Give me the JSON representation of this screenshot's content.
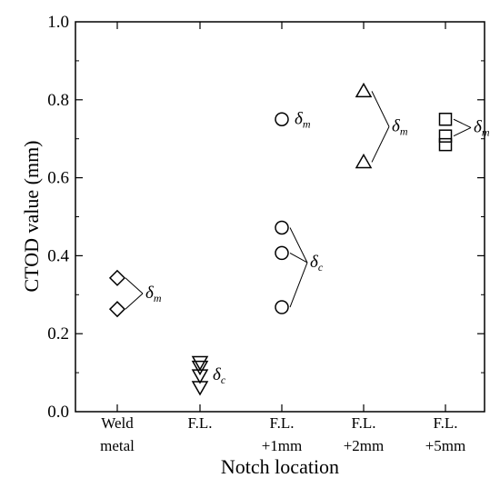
{
  "chart_data": {
    "type": "scatter",
    "title": "",
    "xlabel": "Notch location",
    "ylabel": "CTOD value (mm)",
    "ylim": [
      0,
      1.0
    ],
    "y_ticks": [
      "0.0",
      "0.2",
      "0.4",
      "0.6",
      "0.8",
      "1.0"
    ],
    "categories": [
      [
        "Weld",
        "metal"
      ],
      [
        "F.L."
      ],
      [
        "F.L.",
        "+1mm"
      ],
      [
        "F.L.",
        "+2mm"
      ],
      [
        "F.L.",
        "+5mm"
      ]
    ],
    "grid": false,
    "points": [
      {
        "category_index": 0,
        "marker": "diamond",
        "values": [
          0.343,
          0.263
        ]
      },
      {
        "category_index": 1,
        "marker": "triangle-down",
        "values": [
          0.127,
          0.115,
          0.093,
          0.063
        ]
      },
      {
        "category_index": 2,
        "marker": "circle",
        "values": [
          0.75,
          0.472,
          0.407,
          0.268
        ]
      },
      {
        "category_index": 3,
        "marker": "triangle-up",
        "values": [
          0.822,
          0.64
        ]
      },
      {
        "category_index": 4,
        "marker": "square",
        "values": [
          0.75,
          0.707,
          0.685
        ]
      }
    ],
    "annotations": [
      {
        "category_index": 0,
        "symbol": "δ",
        "subscript": "m",
        "points": [
          0.343,
          0.263
        ]
      },
      {
        "category_index": 1,
        "symbol": "δ",
        "subscript": "c",
        "points": [
          0.093
        ]
      },
      {
        "category_index": 2,
        "symbol": "δ",
        "subscript": "m",
        "points": [
          0.75
        ]
      },
      {
        "category_index": 2,
        "symbol": "δ",
        "subscript": "c",
        "points": [
          0.472,
          0.407,
          0.268
        ]
      },
      {
        "category_index": 3,
        "symbol": "δ",
        "subscript": "m",
        "points": [
          0.822,
          0.64
        ]
      },
      {
        "category_index": 4,
        "symbol": "δ",
        "subscript": "m",
        "points": [
          0.75,
          0.707
        ]
      }
    ]
  }
}
